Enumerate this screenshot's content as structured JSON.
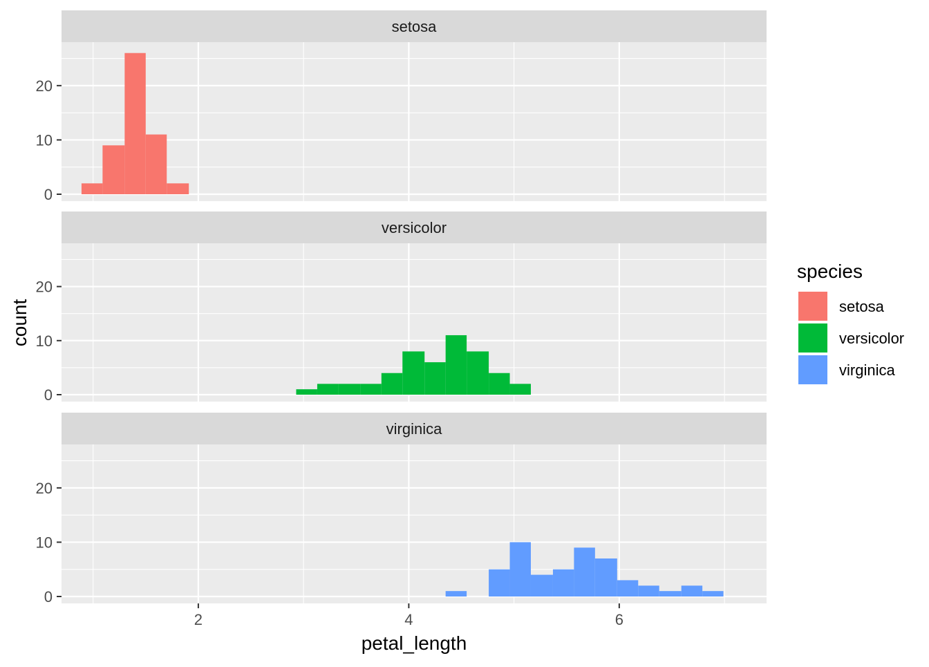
{
  "chart_data": {
    "type": "bar",
    "subtype": "faceted-histogram",
    "xlabel": "petal_length",
    "ylabel": "count",
    "xlim": [
      0.7,
      7.4
    ],
    "ylim": [
      0,
      28
    ],
    "x_ticks": [
      2,
      4,
      6
    ],
    "x_tick_labels": [
      "2",
      "4",
      "6"
    ],
    "y_ticks": [
      0,
      10,
      20
    ],
    "y_tick_labels": [
      "0",
      "10",
      "20"
    ],
    "bin_width": 0.2034,
    "grid": true,
    "legend": {
      "title": "species",
      "placement": "right",
      "entries": [
        {
          "label": "setosa",
          "color": "#F8766D"
        },
        {
          "label": "versicolor",
          "color": "#00BA38"
        },
        {
          "label": "virginica",
          "color": "#619CFF"
        }
      ]
    },
    "facets": [
      {
        "label": "setosa",
        "color": "#F8766D",
        "bins": [
          {
            "x0": 0.89,
            "x1": 1.09,
            "count": 2
          },
          {
            "x0": 1.09,
            "x1": 1.3,
            "count": 9
          },
          {
            "x0": 1.3,
            "x1": 1.5,
            "count": 26
          },
          {
            "x0": 1.5,
            "x1": 1.7,
            "count": 11
          },
          {
            "x0": 1.7,
            "x1": 1.91,
            "count": 2
          }
        ]
      },
      {
        "label": "versicolor",
        "color": "#00BA38",
        "bins": [
          {
            "x0": 2.93,
            "x1": 3.13,
            "count": 1
          },
          {
            "x0": 3.13,
            "x1": 3.33,
            "count": 2
          },
          {
            "x0": 3.33,
            "x1": 3.54,
            "count": 2
          },
          {
            "x0": 3.54,
            "x1": 3.74,
            "count": 2
          },
          {
            "x0": 3.74,
            "x1": 3.94,
            "count": 4
          },
          {
            "x0": 3.94,
            "x1": 4.15,
            "count": 8
          },
          {
            "x0": 4.15,
            "x1": 4.35,
            "count": 6
          },
          {
            "x0": 4.35,
            "x1": 4.55,
            "count": 11
          },
          {
            "x0": 4.55,
            "x1": 4.76,
            "count": 8
          },
          {
            "x0": 4.76,
            "x1": 4.96,
            "count": 4
          },
          {
            "x0": 4.96,
            "x1": 5.16,
            "count": 2
          }
        ]
      },
      {
        "label": "virginica",
        "color": "#619CFF",
        "bins": [
          {
            "x0": 4.35,
            "x1": 4.55,
            "count": 1
          },
          {
            "x0": 4.76,
            "x1": 4.96,
            "count": 5
          },
          {
            "x0": 4.96,
            "x1": 5.16,
            "count": 10
          },
          {
            "x0": 5.16,
            "x1": 5.37,
            "count": 4
          },
          {
            "x0": 5.37,
            "x1": 5.57,
            "count": 5
          },
          {
            "x0": 5.57,
            "x1": 5.77,
            "count": 9
          },
          {
            "x0": 5.77,
            "x1": 5.98,
            "count": 7
          },
          {
            "x0": 5.98,
            "x1": 6.18,
            "count": 3
          },
          {
            "x0": 6.18,
            "x1": 6.38,
            "count": 2
          },
          {
            "x0": 6.38,
            "x1": 6.59,
            "count": 1
          },
          {
            "x0": 6.59,
            "x1": 6.79,
            "count": 2
          },
          {
            "x0": 6.79,
            "x1": 6.99,
            "count": 1
          }
        ]
      }
    ]
  }
}
